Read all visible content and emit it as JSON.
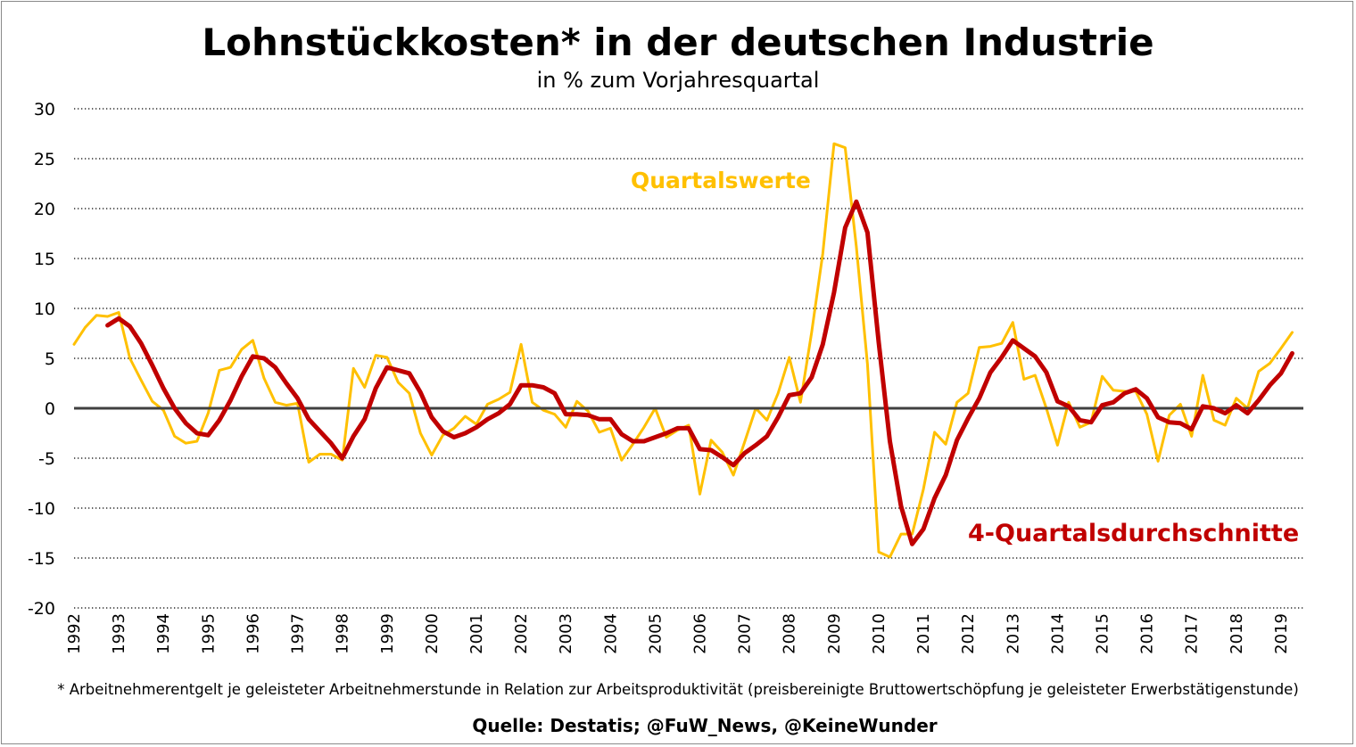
{
  "chart_data": {
    "type": "line",
    "title": "Lohnstückkosten* in der deutschen Industrie",
    "subtitle": "in % zum Vorjahresquartal",
    "ylim": [
      -20,
      30
    ],
    "yticks": [
      30,
      25,
      20,
      15,
      10,
      5,
      0,
      -5,
      -10,
      -15,
      -20
    ],
    "xlim": [
      1992.0,
      2019.5
    ],
    "xticks": [
      "1992",
      "1993",
      "1994",
      "1995",
      "1996",
      "1997",
      "1998",
      "1999",
      "2000",
      "2001",
      "2002",
      "2003",
      "2004",
      "2005",
      "2006",
      "2007",
      "2008",
      "2009",
      "2010",
      "2011",
      "2012",
      "2013",
      "2014",
      "2015",
      "2016",
      "2017",
      "2018",
      "2019"
    ],
    "grid": "horizontal-dotted",
    "zero_line": true,
    "footnote": "* Arbeitnehmerentgelt je geleisteter Arbeitnehmerstunde in Relation zur Arbeitsproduktivität (preisbereinigte Bruttowertschöpfung je geleisteter Erwerbstätigenstunde)",
    "source": "Quelle: Destatis;  @FuW_News, @KeineWunder",
    "series": [
      {
        "name": "Quartalswerte",
        "color": "#FFC000",
        "x": [
          1992.0,
          1992.25,
          1992.5,
          1992.75,
          1993.0,
          1993.25,
          1993.5,
          1993.75,
          1994.0,
          1994.25,
          1994.5,
          1994.75,
          1995.0,
          1995.25,
          1995.5,
          1995.75,
          1996.0,
          1996.25,
          1996.5,
          1996.75,
          1997.0,
          1997.25,
          1997.5,
          1997.75,
          1998.0,
          1998.25,
          1998.5,
          1998.75,
          1999.0,
          1999.25,
          1999.5,
          1999.75,
          2000.0,
          2000.25,
          2000.5,
          2000.75,
          2001.0,
          2001.25,
          2001.5,
          2001.75,
          2002.0,
          2002.25,
          2002.5,
          2002.75,
          2003.0,
          2003.25,
          2003.5,
          2003.75,
          2004.0,
          2004.25,
          2004.5,
          2004.75,
          2005.0,
          2005.25,
          2005.5,
          2005.75,
          2006.0,
          2006.25,
          2006.5,
          2006.75,
          2007.0,
          2007.25,
          2007.5,
          2007.75,
          2008.0,
          2008.25,
          2008.5,
          2008.75,
          2009.0,
          2009.25,
          2009.5,
          2009.75,
          2010.0,
          2010.25,
          2010.5,
          2010.75,
          2011.0,
          2011.25,
          2011.5,
          2011.75,
          2012.0,
          2012.25,
          2012.5,
          2012.75,
          2013.0,
          2013.25,
          2013.5,
          2013.75,
          2014.0,
          2014.25,
          2014.5,
          2014.75,
          2015.0,
          2015.25,
          2015.5,
          2015.75,
          2016.0,
          2016.25,
          2016.5,
          2016.75,
          2017.0,
          2017.25,
          2017.5,
          2017.75,
          2018.0,
          2018.25,
          2018.5,
          2018.75,
          2019.0,
          2019.25
        ],
        "values": [
          6.4,
          8.1,
          9.3,
          9.2,
          9.6,
          5.0,
          2.8,
          0.7,
          -0.2,
          -2.8,
          -3.5,
          -3.3,
          -0.5,
          3.8,
          4.1,
          5.9,
          6.8,
          3.0,
          0.6,
          0.3,
          0.5,
          -5.4,
          -4.6,
          -4.6,
          -5.2,
          4.0,
          2.1,
          5.3,
          5.1,
          2.6,
          1.5,
          -2.5,
          -4.7,
          -2.7,
          -2.0,
          -0.8,
          -1.6,
          0.4,
          0.9,
          1.6,
          6.4,
          0.6,
          -0.2,
          -0.6,
          -1.9,
          0.7,
          -0.3,
          -2.4,
          -2.0,
          -5.2,
          -3.6,
          -1.9,
          0.0,
          -2.9,
          -2.2,
          -1.7,
          -8.6,
          -3.2,
          -4.4,
          -6.7,
          -3.4,
          0.0,
          -1.2,
          1.5,
          5.1,
          0.6,
          7.6,
          15.5,
          26.5,
          26.1,
          16.2,
          4.4,
          -14.4,
          -14.9,
          -12.6,
          -12.6,
          -8.1,
          -2.4,
          -3.6,
          0.6,
          1.5,
          6.1,
          6.2,
          6.5,
          8.6,
          2.9,
          3.3,
          0.0,
          -3.7,
          0.6,
          -1.9,
          -1.4,
          3.2,
          1.8,
          1.7,
          1.7,
          -0.6,
          -5.3,
          -0.7,
          0.4,
          -2.8,
          3.3,
          -1.2,
          -1.7,
          1.0,
          0.0,
          3.7,
          4.5,
          6.0,
          7.6
        ]
      },
      {
        "name": "4-Quartalsdurchschnitte",
        "color": "#C00000",
        "x": [
          1992.75,
          1993.0,
          1993.25,
          1993.5,
          1993.75,
          1994.0,
          1994.25,
          1994.5,
          1994.75,
          1995.0,
          1995.25,
          1995.5,
          1995.75,
          1996.0,
          1996.25,
          1996.5,
          1996.75,
          1997.0,
          1997.25,
          1997.5,
          1997.75,
          1998.0,
          1998.25,
          1998.5,
          1998.75,
          1999.0,
          1999.25,
          1999.5,
          1999.75,
          2000.0,
          2000.25,
          2000.5,
          2000.75,
          2001.0,
          2001.25,
          2001.5,
          2001.75,
          2002.0,
          2002.25,
          2002.5,
          2002.75,
          2003.0,
          2003.25,
          2003.5,
          2003.75,
          2004.0,
          2004.25,
          2004.5,
          2004.75,
          2005.0,
          2005.25,
          2005.5,
          2005.75,
          2006.0,
          2006.25,
          2006.5,
          2006.75,
          2007.0,
          2007.25,
          2007.5,
          2007.75,
          2008.0,
          2008.25,
          2008.5,
          2008.75,
          2009.0,
          2009.25,
          2009.5,
          2009.75,
          2010.0,
          2010.25,
          2010.5,
          2010.75,
          2011.0,
          2011.25,
          2011.5,
          2011.75,
          2012.0,
          2012.25,
          2012.5,
          2012.75,
          2013.0,
          2013.25,
          2013.5,
          2013.75,
          2014.0,
          2014.25,
          2014.5,
          2014.75,
          2015.0,
          2015.25,
          2015.5,
          2015.75,
          2016.0,
          2016.25,
          2016.5,
          2016.75,
          2017.0,
          2017.25,
          2017.5,
          2017.75,
          2018.0,
          2018.25,
          2018.5,
          2018.75,
          2019.0,
          2019.25
        ],
        "values": [
          8.3,
          9.0,
          8.2,
          6.5,
          4.3,
          2.0,
          0.0,
          -1.5,
          -2.5,
          -2.7,
          -1.2,
          0.8,
          3.2,
          5.2,
          5.0,
          4.1,
          2.5,
          1.0,
          -1.1,
          -2.3,
          -3.5,
          -5.0,
          -2.8,
          -1.1,
          2.0,
          4.1,
          3.8,
          3.5,
          1.6,
          -0.9,
          -2.3,
          -2.9,
          -2.5,
          -1.9,
          -1.1,
          -0.5,
          0.4,
          2.3,
          2.3,
          2.1,
          1.5,
          -0.6,
          -0.6,
          -0.7,
          -1.1,
          -1.1,
          -2.6,
          -3.3,
          -3.3,
          -2.9,
          -2.5,
          -2.0,
          -2.0,
          -4.1,
          -4.2,
          -4.9,
          -5.7,
          -4.5,
          -3.7,
          -2.8,
          -0.9,
          1.3,
          1.5,
          3.1,
          6.4,
          11.6,
          18.1,
          20.7,
          17.6,
          6.6,
          -3.3,
          -9.8,
          -13.6,
          -12.1,
          -9.0,
          -6.7,
          -3.2,
          -1.0,
          1.0,
          3.6,
          5.1,
          6.8,
          6.0,
          5.2,
          3.6,
          0.7,
          0.2,
          -1.2,
          -1.4,
          0.3,
          0.6,
          1.5,
          1.9,
          1.0,
          -0.9,
          -1.4,
          -1.5,
          -2.1,
          0.2,
          0.0,
          -0.5,
          0.3,
          -0.5,
          0.8,
          2.3,
          3.5,
          5.5
        ]
      }
    ],
    "annotations": {
      "quartalswerte_label": "Quartalswerte",
      "durchschnitt_label": "4-Quartalsdurchschnitte"
    }
  }
}
